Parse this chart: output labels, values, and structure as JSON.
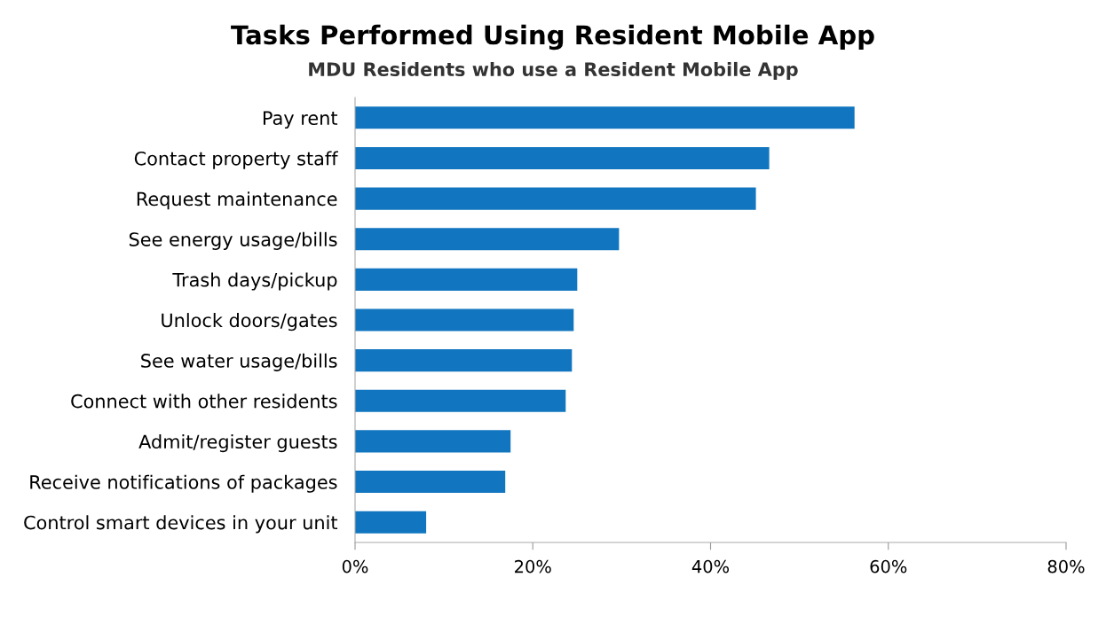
{
  "chart_data": {
    "type": "bar",
    "orientation": "horizontal",
    "title": "Tasks Performed Using Resident Mobile App",
    "subtitle": "MDU Residents who use a Resident Mobile App",
    "categories": [
      "Pay rent",
      "Contact property staff",
      "Request maintenance",
      "See energy usage/bills",
      "Trash days/pickup",
      "Unlock doors/gates",
      "See water usage/bills",
      "Connect with other residents",
      "Admit/register guests",
      "Receive notifications of packages",
      "Control smart devices in your unit"
    ],
    "values": [
      56.2,
      46.6,
      45.1,
      29.7,
      25.0,
      24.6,
      24.4,
      23.7,
      17.5,
      16.9,
      8.0
    ],
    "color": "#1176bf",
    "xlim": [
      0,
      80
    ],
    "xticks": [
      {
        "value": 0,
        "label": "0%"
      },
      {
        "value": 20,
        "label": "20%"
      },
      {
        "value": 40,
        "label": "40%"
      },
      {
        "value": 60,
        "label": "60%"
      },
      {
        "value": 80,
        "label": "80%"
      }
    ],
    "grid": false,
    "legend": false
  }
}
